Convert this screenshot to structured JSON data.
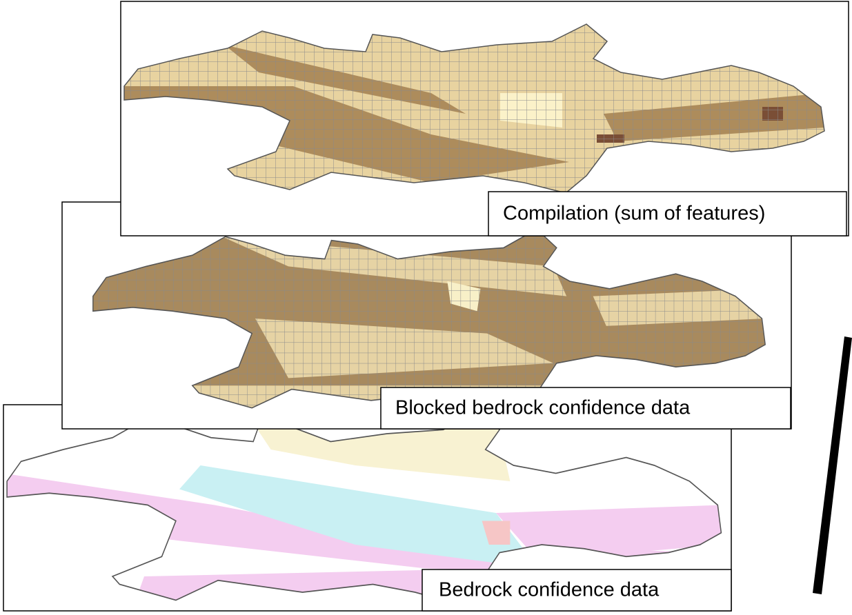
{
  "panels": [
    {
      "label": "Compilation (sum of features)"
    },
    {
      "label": "Blocked bedrock confidence data"
    },
    {
      "label": "Bedrock confidence data"
    }
  ]
}
